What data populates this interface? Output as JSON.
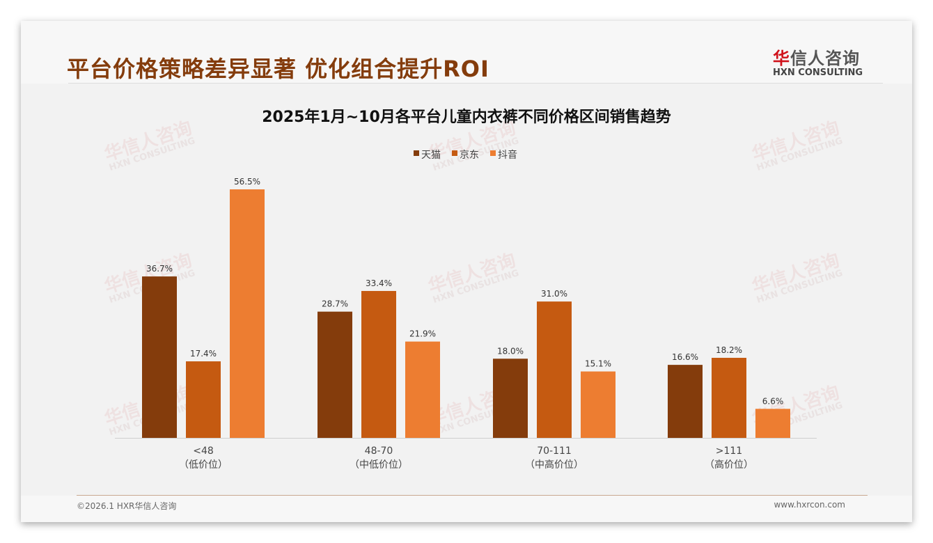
{
  "header": {
    "title": "平台价格策略差异显著 优化组合提升ROI",
    "logo_cn": "华信人咨询",
    "logo_cn_first": "华",
    "logo_cn_rest": "信人咨询",
    "logo_en": "HXN CONSULTING"
  },
  "footer": {
    "copyright": "©2026.1 HXR华信人咨询",
    "website": "www.hxrcon.com"
  },
  "watermark": {
    "cn": "华信人咨询",
    "en": "HXN CONSULTING"
  },
  "colors": {
    "tmall": "#843c0c",
    "jd": "#c55a11",
    "douyin": "#ed7d31",
    "title": "#843c0c"
  },
  "chart_data": {
    "type": "bar",
    "title": "2025年1月~10月各平台儿童内衣裤不同价格区间销售趋势",
    "categories": [
      "<48",
      "48-70",
      "70-111",
      ">111"
    ],
    "category_sublabels": [
      "（低价位）",
      "（中低价位）",
      "（中高价位）",
      "（高价位）"
    ],
    "series": [
      {
        "name": "天猫",
        "values": [
          36.7,
          28.7,
          18.0,
          16.6
        ]
      },
      {
        "name": "京东",
        "values": [
          17.4,
          33.4,
          31.0,
          18.2
        ]
      },
      {
        "name": "抖音",
        "values": [
          56.5,
          21.9,
          15.1,
          6.6
        ]
      }
    ],
    "unit": "%",
    "ylim": [
      0,
      56.5
    ],
    "legend": "top-center",
    "grid": false
  }
}
